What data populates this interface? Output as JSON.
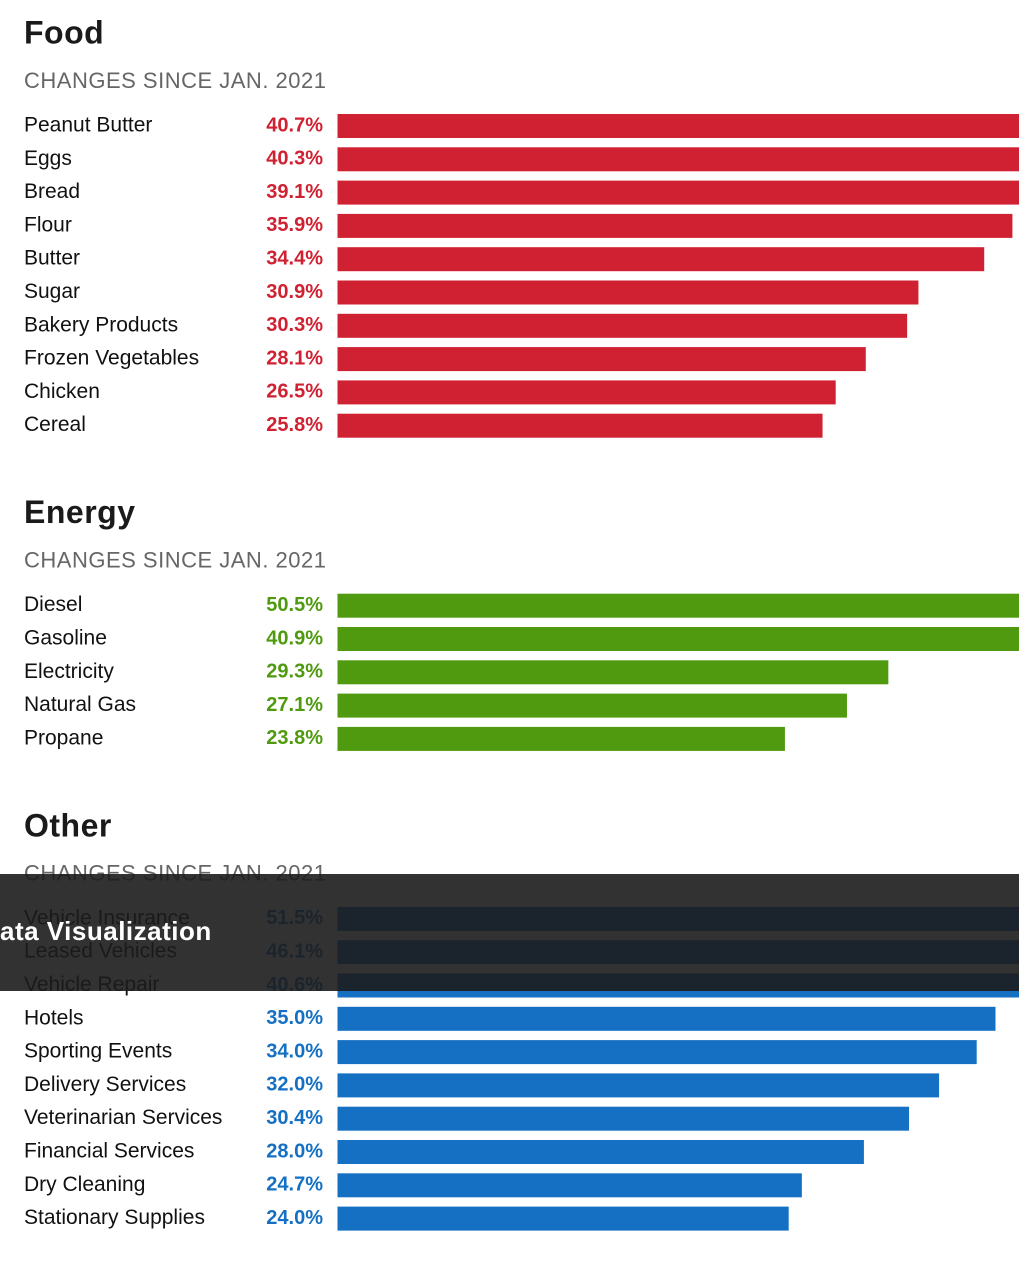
{
  "chart_data": [
    {
      "type": "bar",
      "title": "Food",
      "subtitle": "CHANGES SINCE JAN. 2021",
      "color": "#d02132",
      "categories": [
        "Peanut Butter",
        "Eggs",
        "Bread",
        "Flour",
        "Butter",
        "Sugar",
        "Bakery Products",
        "Frozen Vegetables",
        "Chicken",
        "Cereal"
      ],
      "values": [
        40.7,
        40.3,
        39.1,
        35.9,
        34.4,
        30.9,
        30.3,
        28.1,
        26.5,
        25.8
      ],
      "value_labels": [
        "40.7%",
        "40.3%",
        "39.1%",
        "35.9%",
        "34.4%",
        "30.9%",
        "30.3%",
        "28.1%",
        "26.5%",
        "25.8%"
      ]
    },
    {
      "type": "bar",
      "title": "Energy",
      "subtitle": "CHANGES SINCE JAN. 2021",
      "color": "#4f9a0f",
      "categories": [
        "Diesel",
        "Gasoline",
        "Electricity",
        "Natural Gas",
        "Propane"
      ],
      "values": [
        50.5,
        40.9,
        29.3,
        27.1,
        23.8
      ],
      "value_labels": [
        "50.5%",
        "40.9%",
        "29.3%",
        "27.1%",
        "23.8%"
      ]
    },
    {
      "type": "bar",
      "title": "Other",
      "subtitle": "CHANGES SINCE JAN. 2021",
      "color": "#1570c4",
      "categories": [
        "Vehicle Insurance",
        "Leased Vehicles",
        "Vehicle Repair",
        "Hotels",
        "Sporting Events",
        "Delivery Services",
        "Veterinarian Services",
        "Financial Services",
        "Dry Cleaning",
        "Stationary Supplies"
      ],
      "values": [
        51.5,
        46.1,
        40.6,
        35.0,
        34.0,
        32.0,
        30.4,
        28.0,
        24.7,
        24.0
      ],
      "value_labels": [
        "51.5%",
        "46.1%",
        "40.6%",
        "35.0%",
        "34.0%",
        "32.0%",
        "30.4%",
        "28.0%",
        "24.7%",
        "24.0%"
      ]
    }
  ],
  "overlay": {
    "text": "ata Visualization"
  }
}
